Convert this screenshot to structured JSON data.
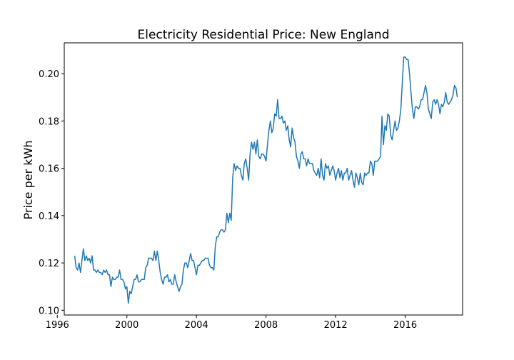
{
  "chart_data": {
    "type": "line",
    "title": "Electricity Residential Price: New England",
    "xlabel": "",
    "ylabel": "Price per kWh",
    "xlim": [
      1996.4,
      2019.3
    ],
    "ylim": [
      0.098,
      0.213
    ],
    "x_ticks": [
      1996,
      2000,
      2004,
      2008,
      2012,
      2016
    ],
    "y_ticks": [
      0.1,
      0.12,
      0.14,
      0.16,
      0.18,
      0.2
    ],
    "y_tick_labels": [
      "0.10",
      "0.12",
      "0.14",
      "0.16",
      "0.18",
      "0.20"
    ],
    "grid": false,
    "legend": "none",
    "line_color": "#1f77b4",
    "series": [
      {
        "x_start": 1997.0,
        "x_step": 0.08333,
        "values": [
          0.123,
          0.118,
          0.117,
          0.12,
          0.116,
          0.121,
          0.126,
          0.121,
          0.123,
          0.121,
          0.122,
          0.12,
          0.123,
          0.117,
          0.117,
          0.116,
          0.117,
          0.116,
          0.116,
          0.115,
          0.117,
          0.116,
          0.117,
          0.115,
          0.115,
          0.11,
          0.114,
          0.113,
          0.113,
          0.114,
          0.114,
          0.117,
          0.113,
          0.113,
          0.112,
          0.109,
          0.11,
          0.103,
          0.108,
          0.107,
          0.11,
          0.113,
          0.113,
          0.115,
          0.112,
          0.112,
          0.113,
          0.113,
          0.113,
          0.118,
          0.119,
          0.122,
          0.122,
          0.122,
          0.121,
          0.125,
          0.121,
          0.125,
          0.121,
          0.116,
          0.113,
          0.111,
          0.114,
          0.114,
          0.115,
          0.112,
          0.113,
          0.111,
          0.111,
          0.115,
          0.112,
          0.11,
          0.108,
          0.11,
          0.111,
          0.117,
          0.12,
          0.12,
          0.118,
          0.121,
          0.124,
          0.121,
          0.121,
          0.118,
          0.115,
          0.119,
          0.119,
          0.12,
          0.121,
          0.121,
          0.122,
          0.122,
          0.122,
          0.119,
          0.118,
          0.118,
          0.117,
          0.127,
          0.131,
          0.131,
          0.133,
          0.134,
          0.134,
          0.133,
          0.134,
          0.141,
          0.137,
          0.141,
          0.138,
          0.156,
          0.162,
          0.159,
          0.161,
          0.16,
          0.16,
          0.157,
          0.155,
          0.162,
          0.164,
          0.16,
          0.155,
          0.166,
          0.171,
          0.168,
          0.171,
          0.166,
          0.172,
          0.165,
          0.164,
          0.166,
          0.166,
          0.165,
          0.163,
          0.17,
          0.176,
          0.18,
          0.175,
          0.177,
          0.183,
          0.182,
          0.189,
          0.181,
          0.181,
          0.182,
          0.179,
          0.18,
          0.176,
          0.178,
          0.172,
          0.169,
          0.177,
          0.173,
          0.171,
          0.165,
          0.163,
          0.16,
          0.166,
          0.167,
          0.164,
          0.164,
          0.161,
          0.164,
          0.162,
          0.162,
          0.162,
          0.159,
          0.158,
          0.157,
          0.16,
          0.156,
          0.164,
          0.157,
          0.155,
          0.162,
          0.16,
          0.161,
          0.157,
          0.159,
          0.161,
          0.159,
          0.155,
          0.158,
          0.16,
          0.156,
          0.159,
          0.155,
          0.158,
          0.158,
          0.16,
          0.155,
          0.157,
          0.159,
          0.155,
          0.152,
          0.158,
          0.156,
          0.153,
          0.158,
          0.154,
          0.153,
          0.158,
          0.157,
          0.158,
          0.158,
          0.163,
          0.162,
          0.157,
          0.163,
          0.163,
          0.163,
          0.164,
          0.165,
          0.182,
          0.17,
          0.178,
          0.176,
          0.183,
          0.182,
          0.174,
          0.172,
          0.176,
          0.18,
          0.176,
          0.177,
          0.18,
          0.185,
          0.196,
          0.207,
          0.207,
          0.206,
          0.206,
          0.2,
          0.192,
          0.185,
          0.181,
          0.186,
          0.186,
          0.185,
          0.186,
          0.189,
          0.189,
          0.192,
          0.195,
          0.192,
          0.185,
          0.183,
          0.181,
          0.188,
          0.189,
          0.187,
          0.189,
          0.187,
          0.183,
          0.187,
          0.186,
          0.188,
          0.192,
          0.188,
          0.187,
          0.188,
          0.189,
          0.191,
          0.195,
          0.194,
          0.19
        ]
      }
    ]
  }
}
